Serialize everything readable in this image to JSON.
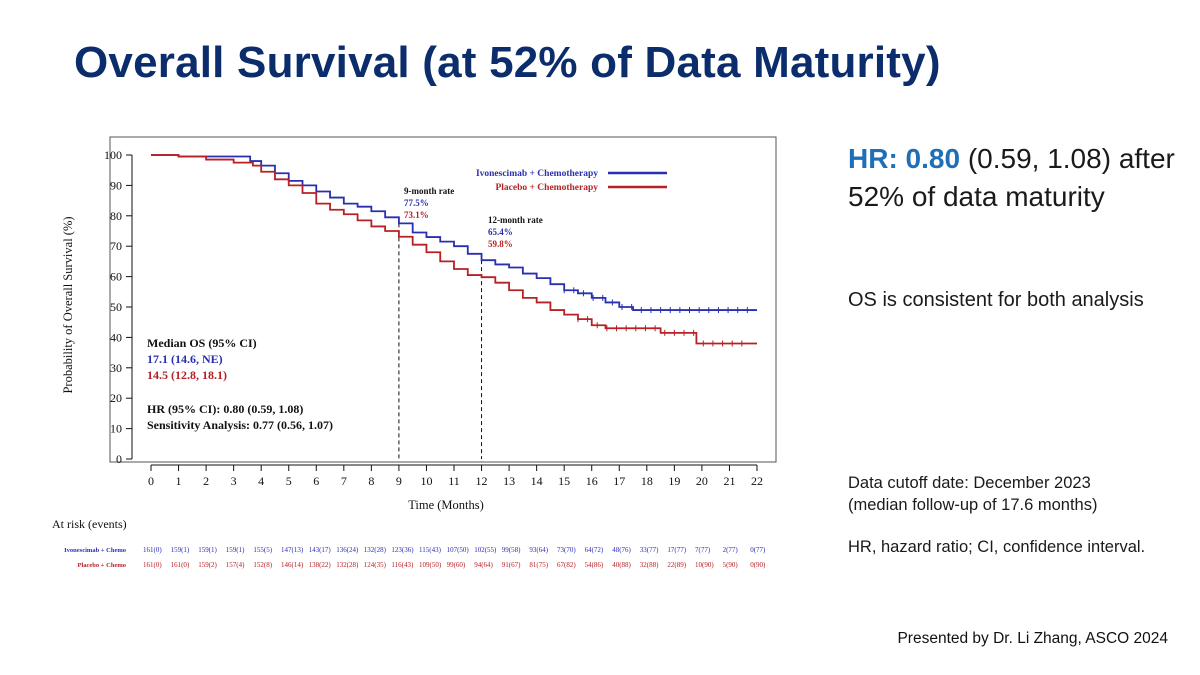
{
  "slide": {
    "title": "Overall Survival (at 52% of Data Maturity)",
    "hr_label": "HR:",
    "hr_value": "0.80",
    "hr_ci": "(0.59, 1.08)",
    "hr_text": "after 52% of data maturity",
    "consistency": "OS is consistent for both analysis",
    "cutoff_line1": "Data cutoff date: December 2023",
    "cutoff_line2": "(median follow-up of 17.6 months)",
    "abbreviations": "HR, hazard ratio; CI, confidence interval.",
    "presenter": "Presented by Dr. Li Zhang, ASCO 2024"
  },
  "chart_data": {
    "type": "line",
    "step": true,
    "xlabel": "Time (Months)",
    "ylabel": "Probability of Overall Survival (%)",
    "xlim": [
      0,
      22
    ],
    "ylim": [
      0,
      100
    ],
    "xticks": [
      "0",
      "1",
      "2",
      "3",
      "4",
      "5",
      "6",
      "7",
      "8",
      "9",
      "10",
      "11",
      "12",
      "13",
      "14",
      "15",
      "16",
      "17",
      "18",
      "19",
      "20",
      "21",
      "22"
    ],
    "yticks": [
      "0",
      "10",
      "20",
      "30",
      "40",
      "50",
      "60",
      "70",
      "80",
      "90",
      "100"
    ],
    "colors": {
      "ivo": "#2a2fb0",
      "pla": "#b72025",
      "text": "#111111"
    },
    "series": [
      {
        "name": "Ivonescimab + Chemotherapy",
        "color": "#2a2fb0",
        "points": [
          [
            0,
            100
          ],
          [
            1,
            99.5
          ],
          [
            2,
            99.5
          ],
          [
            3,
            99.5
          ],
          [
            3.6,
            98
          ],
          [
            4,
            96.5
          ],
          [
            4.5,
            94
          ],
          [
            5,
            91.5
          ],
          [
            5.5,
            90
          ],
          [
            6,
            88
          ],
          [
            6.5,
            86
          ],
          [
            7,
            84
          ],
          [
            7.5,
            83
          ],
          [
            8,
            81.5
          ],
          [
            8.5,
            79.5
          ],
          [
            9,
            77.5
          ],
          [
            9.5,
            74.5
          ],
          [
            10,
            73
          ],
          [
            10.5,
            71.5
          ],
          [
            11,
            70
          ],
          [
            11.5,
            67.5
          ],
          [
            12,
            65.4
          ],
          [
            12.5,
            64
          ],
          [
            13,
            63
          ],
          [
            13.5,
            61
          ],
          [
            14,
            59.5
          ],
          [
            14.5,
            57.5
          ],
          [
            15,
            55.5
          ],
          [
            15.5,
            54.5
          ],
          [
            16,
            53
          ],
          [
            16.5,
            51.5
          ],
          [
            17,
            50
          ],
          [
            17.5,
            49
          ],
          [
            18,
            49
          ],
          [
            19,
            49
          ],
          [
            20,
            49
          ],
          [
            21,
            49
          ],
          [
            22,
            49
          ]
        ]
      },
      {
        "name": "Placebo + Chemotherapy",
        "color": "#b72025",
        "points": [
          [
            0,
            100
          ],
          [
            1,
            99.5
          ],
          [
            2,
            98.5
          ],
          [
            3,
            97.5
          ],
          [
            3.7,
            96.5
          ],
          [
            4,
            94.5
          ],
          [
            4.5,
            92
          ],
          [
            5,
            90
          ],
          [
            5.5,
            87.5
          ],
          [
            6,
            84
          ],
          [
            6.5,
            82
          ],
          [
            7,
            80.5
          ],
          [
            7.5,
            78.5
          ],
          [
            8,
            76.5
          ],
          [
            8.5,
            75
          ],
          [
            9,
            73.1
          ],
          [
            9.5,
            70.5
          ],
          [
            10,
            68
          ],
          [
            10.5,
            65
          ],
          [
            11,
            62.5
          ],
          [
            11.5,
            60.5
          ],
          [
            12,
            59.8
          ],
          [
            12.5,
            58
          ],
          [
            13,
            55.5
          ],
          [
            13.5,
            53
          ],
          [
            14,
            51.5
          ],
          [
            14.5,
            49
          ],
          [
            15,
            47.5
          ],
          [
            15.5,
            46
          ],
          [
            16,
            44
          ],
          [
            16.5,
            43
          ],
          [
            17,
            43
          ],
          [
            18,
            43
          ],
          [
            18.5,
            41.5
          ],
          [
            19,
            41.5
          ],
          [
            19.8,
            38
          ],
          [
            20,
            38
          ],
          [
            21,
            38
          ],
          [
            22,
            38
          ]
        ]
      }
    ],
    "annotations": {
      "m9_title": "9-month rate",
      "m9_ivo": "77.5%",
      "m9_pla": "73.1%",
      "m12_title": "12-month rate",
      "m12_ivo": "65.4%",
      "m12_pla": "59.8%",
      "median_title": "Median OS (95% CI)",
      "median_ivo": "17.1 (14.6, NE)",
      "median_pla": "14.5 (12.8, 18.1)",
      "hr_line": "HR (95% CI): 0.80 (0.59, 1.08)",
      "sens_line": "Sensitivity Analysis: 0.77 (0.56, 1.07)",
      "legend_ivo": "Ivonescimab + Chemotherapy",
      "legend_pla": "Placebo + Chemotherapy"
    },
    "at_risk": {
      "title": "At risk (events)",
      "ivo_label": "Ivonescimab + Chemo",
      "pla_label": "Placebo + Chemo",
      "ivo": [
        "161(0)",
        "159(1)",
        "159(1)",
        "159(1)",
        "155(5)",
        "147(13)",
        "143(17)",
        "136(24)",
        "132(28)",
        "123(36)",
        "115(43)",
        "107(50)",
        "102(55)",
        "99(58)",
        "93(64)",
        "73(70)",
        "64(72)",
        "48(76)",
        "33(77)",
        "17(77)",
        "7(77)",
        "2(77)",
        "0(77)"
      ],
      "pla": [
        "161(0)",
        "161(0)",
        "159(2)",
        "157(4)",
        "152(8)",
        "146(14)",
        "138(22)",
        "132(28)",
        "124(35)",
        "116(43)",
        "109(50)",
        "99(60)",
        "94(64)",
        "91(67)",
        "81(75)",
        "67(82)",
        "54(86)",
        "40(88)",
        "32(88)",
        "22(89)",
        "10(90)",
        "5(90)",
        "0(90)"
      ]
    }
  }
}
